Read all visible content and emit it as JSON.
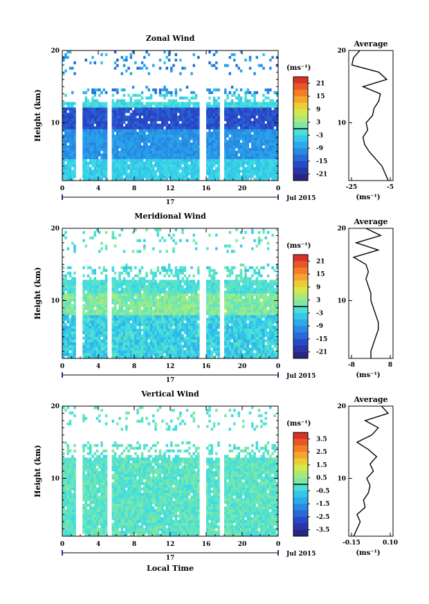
{
  "x_ticks": [
    "0",
    "4",
    "8",
    "12",
    "16",
    "20",
    "0"
  ],
  "day_label": "17",
  "month_label": "Jul 2015",
  "xlabel_bottom": "Local Time",
  "ylabel": "Height (km)",
  "unit_label": "(ms⁻¹)",
  "avg_title": "Average",
  "chart_data": [
    {
      "type": "heatmap",
      "title": "Zonal Wind",
      "xlabel": "",
      "ylabel": "Height (km)",
      "xlim": [
        0,
        24
      ],
      "ylim": [
        2,
        20
      ],
      "y_ticks": [
        "20",
        "10"
      ],
      "colorbar": {
        "label": "(ms⁻¹)",
        "ticks": [
          "21",
          "15",
          "9",
          "3",
          "-3",
          "-9",
          "-15",
          "-21"
        ],
        "range": [
          -24,
          24
        ]
      },
      "missing_hours": [
        1.4,
        2.2,
        4.9,
        5.4,
        11.9,
        12.1,
        15.3,
        15.9,
        17.5,
        17.9
      ],
      "profile": {
        "title": "Average",
        "xlabel": "(ms⁻¹)",
        "x_ticks": [
          "-25",
          "-5"
        ],
        "xlim": [
          -27,
          1
        ],
        "heights": [
          2,
          3,
          4,
          5,
          6,
          7,
          8,
          9,
          10,
          11,
          12,
          13,
          14,
          15,
          16,
          17,
          18,
          19,
          20
        ],
        "values": [
          -2,
          -4,
          -6,
          -10,
          -14,
          -17,
          -18,
          -15,
          -16,
          -12,
          -11,
          -8,
          -7,
          -18,
          -3,
          -8,
          -25,
          -24,
          -20
        ]
      }
    },
    {
      "type": "heatmap",
      "title": "Meridional Wind",
      "xlabel": "",
      "ylabel": "Height (km)",
      "xlim": [
        0,
        24
      ],
      "ylim": [
        2,
        20
      ],
      "y_ticks": [
        "20",
        "10"
      ],
      "colorbar": {
        "label": "(ms⁻¹)",
        "ticks": [
          "21",
          "15",
          "9",
          "3",
          "-3",
          "-9",
          "-15",
          "-21"
        ],
        "range": [
          -24,
          24
        ]
      },
      "missing_hours": [
        1.4,
        2.2,
        4.9,
        5.4,
        11.9,
        12.1,
        15.3,
        15.9,
        17.5,
        17.9
      ],
      "profile": {
        "title": "Average",
        "xlabel": "(ms⁻¹)",
        "x_ticks": [
          "-8",
          "8"
        ],
        "xlim": [
          -9,
          9
        ],
        "heights": [
          2,
          3,
          4,
          5,
          6,
          7,
          8,
          9,
          10,
          11,
          12,
          13,
          14,
          15,
          16,
          17,
          18,
          19,
          20
        ],
        "values": [
          0,
          0,
          1,
          2,
          3,
          3,
          2,
          1,
          0,
          0,
          -1,
          -2,
          -1,
          -2,
          -7,
          3,
          -6,
          4,
          -2
        ]
      }
    },
    {
      "type": "heatmap",
      "title": "Vertical Wind",
      "xlabel": "Local Time",
      "ylabel": "Height (km)",
      "xlim": [
        0,
        24
      ],
      "ylim": [
        2,
        20
      ],
      "y_ticks": [
        "20",
        "10"
      ],
      "colorbar": {
        "label": "(ms⁻¹)",
        "ticks": [
          "3.5",
          "2.5",
          "1.5",
          "0.5",
          "-0.5",
          "-1.5",
          "-2.5",
          "-3.5"
        ],
        "range": [
          -4,
          4
        ]
      },
      "missing_hours": [
        1.4,
        2.2,
        4.9,
        5.4,
        11.9,
        12.1,
        15.3,
        15.9,
        17.5,
        17.9
      ],
      "profile": {
        "title": "Average",
        "xlabel": "(ms⁻¹)",
        "x_ticks": [
          "-0.15",
          "0.10"
        ],
        "xlim": [
          -0.15,
          0.12
        ],
        "heights": [
          2,
          3,
          4,
          5,
          6,
          7,
          8,
          9,
          10,
          11,
          12,
          13,
          14,
          15,
          16,
          17,
          18,
          19,
          20
        ],
        "values": [
          -0.12,
          -0.1,
          -0.08,
          -0.1,
          -0.05,
          -0.06,
          -0.03,
          -0.02,
          -0.04,
          0.0,
          -0.02,
          0.02,
          -0.03,
          -0.1,
          -0.01,
          0.03,
          -0.05,
          0.09,
          0.05
        ]
      }
    }
  ]
}
